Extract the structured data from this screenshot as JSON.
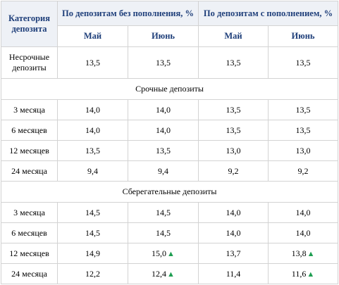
{
  "header": {
    "category": "Категория депозита",
    "group_no_topup": "По депозитам без пополнения, %",
    "group_topup": "По депозитам с пополнением, %",
    "may": "Май",
    "june": "Июнь"
  },
  "rows": {
    "nonterm": {
      "label": "Несрочные депозиты",
      "v1": "13,5",
      "v2": "13,5",
      "v3": "13,5",
      "v4": "13,5"
    }
  },
  "sections": {
    "term": {
      "title": "Срочные депозиты",
      "r3m": {
        "label": "3 месяца",
        "v1": "14,0",
        "v2": "14,0",
        "v3": "13,5",
        "v4": "13,5"
      },
      "r6m": {
        "label": "6 месяцев",
        "v1": "14,0",
        "v2": "14,0",
        "v3": "13,5",
        "v4": "13,5"
      },
      "r12m": {
        "label": "12 месяцев",
        "v1": "13,5",
        "v2": "13,5",
        "v3": "13,0",
        "v4": "13,0"
      },
      "r24m": {
        "label": "24 месяца",
        "v1": "9,4",
        "v2": "9,4",
        "v3": "9,2",
        "v4": "9,2"
      }
    },
    "savings": {
      "title": "Сберегательные депозиты",
      "r3m": {
        "label": "3 месяца",
        "v1": "14,5",
        "v2": "14,5",
        "v3": "14,0",
        "v4": "14,0"
      },
      "r6m": {
        "label": "6 месяцев",
        "v1": "14,5",
        "v2": "14,5",
        "v3": "14,0",
        "v4": "14,0"
      },
      "r12m": {
        "label": "12 месяцев",
        "v1": "14,9",
        "v2": "15,0",
        "v3": "13,7",
        "v4": "13,8"
      },
      "r24m": {
        "label": "24 месяца",
        "v1": "12,2",
        "v2": "12,4",
        "v3": "11,4",
        "v4": "11,6"
      }
    }
  },
  "indicators": {
    "up_icon": "triangle-up",
    "up_color": "#1f9e52",
    "header_color": "#1f3f7a"
  }
}
